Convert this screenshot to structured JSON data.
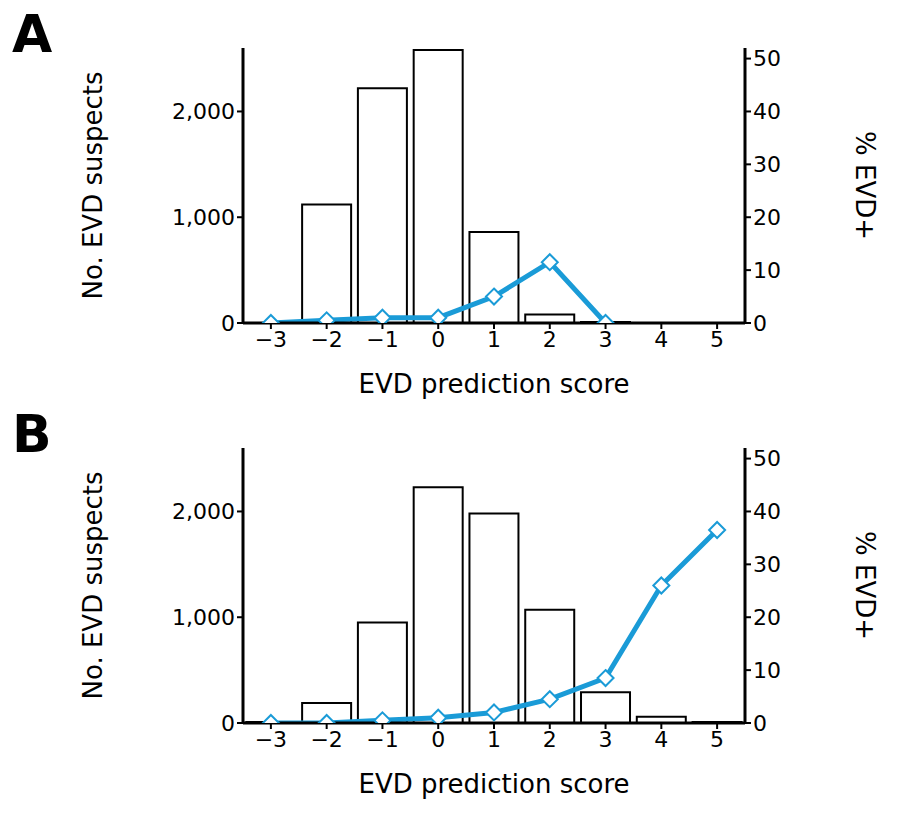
{
  "chart_data": [
    {
      "type": "bar",
      "title": "A",
      "x_label": "EVD prediction score",
      "y_label": "No. EVD suspects",
      "y2_label": "% EVD+",
      "categories": [
        "−3",
        "−2",
        "−1",
        "0",
        "1",
        "2",
        "3",
        "4",
        "5"
      ],
      "series": [
        {
          "name": "No. EVD suspects",
          "type": "bar",
          "color": "#ffffff",
          "values": [
            0,
            1120,
            2220,
            2580,
            860,
            80,
            10,
            0,
            0
          ]
        },
        {
          "name": "% EVD+",
          "type": "line",
          "axis": "y2",
          "color": "#1a9bd7",
          "marker": "diamond",
          "values": [
            0,
            0.5,
            1,
            1,
            5,
            11.5,
            0,
            null,
            null
          ]
        }
      ],
      "ylim": [
        0,
        2600
      ],
      "yticks": [
        0,
        {
          "value": 1000,
          "label": "1,000"
        },
        {
          "value": 2000,
          "label": "2,000"
        }
      ],
      "y2lim": [
        0,
        52
      ],
      "y2ticks": [
        0,
        10,
        20,
        30,
        40,
        50
      ]
    },
    {
      "type": "bar",
      "title": "B",
      "x_label": "EVD prediction score",
      "y_label": "No. EVD suspects",
      "y2_label": "% EVD+",
      "categories": [
        "−3",
        "−2",
        "−1",
        "0",
        "1",
        "2",
        "3",
        "4",
        "5"
      ],
      "series": [
        {
          "name": "No. EVD suspects",
          "type": "bar",
          "color": "#ffffff",
          "values": [
            10,
            190,
            950,
            2230,
            1980,
            1070,
            290,
            60,
            10
          ]
        },
        {
          "name": "% EVD+",
          "type": "line",
          "axis": "y2",
          "color": "#1a9bd7",
          "marker": "diamond",
          "values": [
            0,
            0,
            0.5,
            1,
            2,
            4.5,
            8.5,
            26,
            36.5
          ]
        }
      ],
      "ylim": [
        0,
        2600
      ],
      "yticks": [
        0,
        {
          "value": 1000,
          "label": "1,000"
        },
        {
          "value": 2000,
          "label": "2,000"
        }
      ],
      "y2lim": [
        0,
        52
      ],
      "y2ticks": [
        0,
        10,
        20,
        30,
        40,
        50
      ]
    }
  ]
}
